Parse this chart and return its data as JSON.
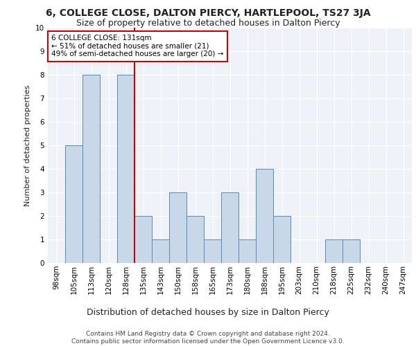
{
  "title1": "6, COLLEGE CLOSE, DALTON PIERCY, HARTLEPOOL, TS27 3JA",
  "title2": "Size of property relative to detached houses in Dalton Piercy",
  "xlabel": "Distribution of detached houses by size in Dalton Piercy",
  "ylabel": "Number of detached properties",
  "categories": [
    "98sqm",
    "105sqm",
    "113sqm",
    "120sqm",
    "128sqm",
    "135sqm",
    "143sqm",
    "150sqm",
    "158sqm",
    "165sqm",
    "173sqm",
    "180sqm",
    "188sqm",
    "195sqm",
    "203sqm",
    "210sqm",
    "218sqm",
    "225sqm",
    "232sqm",
    "240sqm",
    "247sqm"
  ],
  "values": [
    0,
    5,
    8,
    0,
    8,
    2,
    1,
    3,
    2,
    1,
    3,
    1,
    4,
    2,
    0,
    0,
    1,
    1,
    0,
    0,
    0
  ],
  "bar_color": "#c8d8e8",
  "bar_edge_color": "#5a8ab0",
  "annotation_box_text": "6 COLLEGE CLOSE: 131sqm\n← 51% of detached houses are smaller (21)\n49% of semi-detached houses are larger (20) →",
  "annotation_box_color": "#ffffff",
  "annotation_box_edge_color": "#cc0000",
  "vline_after_index": 4,
  "vline_color": "#cc0000",
  "ylim": [
    0,
    10
  ],
  "yticks": [
    0,
    1,
    2,
    3,
    4,
    5,
    6,
    7,
    8,
    9,
    10
  ],
  "footnote": "Contains HM Land Registry data © Crown copyright and database right 2024.\nContains public sector information licensed under the Open Government Licence v3.0.",
  "bg_color": "#eef2f7",
  "grid_color": "#ffffff",
  "title1_fontsize": 10,
  "title2_fontsize": 9,
  "xlabel_fontsize": 9,
  "ylabel_fontsize": 8,
  "tick_fontsize": 7.5,
  "footnote_fontsize": 6.5,
  "annot_fontsize": 7.5
}
